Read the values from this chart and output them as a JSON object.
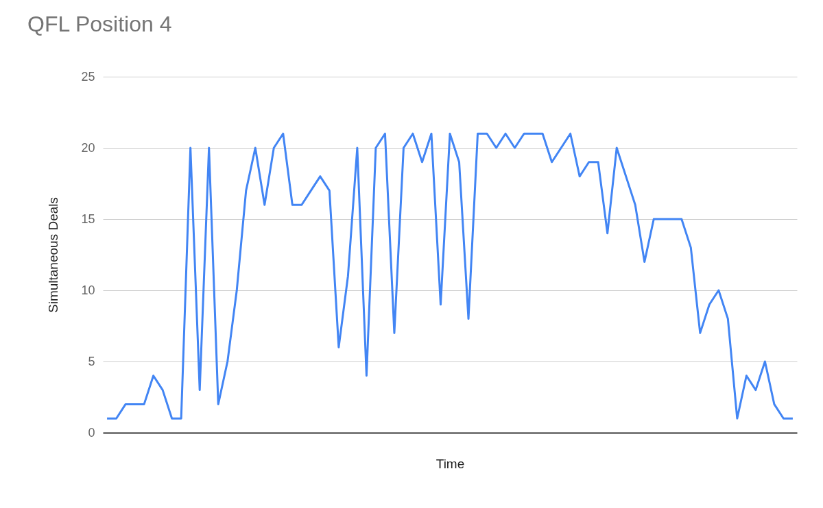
{
  "chart_data": {
    "type": "line",
    "title": "QFL Position 4",
    "xlabel": "Time",
    "ylabel": "Simultaneous Deals",
    "categories": [
      null,
      null,
      null,
      null,
      null,
      null,
      null,
      null,
      null,
      null,
      null,
      null,
      null,
      null,
      null,
      null,
      null,
      null,
      null,
      null,
      null,
      null,
      null,
      null,
      null,
      null,
      null,
      null,
      null,
      null,
      null,
      null,
      null,
      null,
      null,
      null,
      null,
      null,
      null,
      null,
      null,
      null,
      null,
      null,
      null,
      null,
      null,
      null,
      null,
      null,
      null,
      null,
      null,
      null,
      null,
      null,
      null,
      null,
      null,
      null,
      null,
      null,
      null,
      null,
      null,
      null,
      null,
      null,
      null,
      null,
      null,
      null,
      null,
      null,
      null
    ],
    "values": [
      1,
      1,
      2,
      2,
      2,
      4,
      3,
      1,
      1,
      20,
      3,
      20,
      2,
      5,
      10,
      17,
      20,
      16,
      20,
      21,
      16,
      16,
      17,
      18,
      17,
      6,
      11,
      20,
      4,
      20,
      21,
      7,
      20,
      21,
      19,
      21,
      9,
      21,
      19,
      8,
      21,
      21,
      20,
      21,
      20,
      21,
      21,
      21,
      19,
      20,
      21,
      18,
      19,
      19,
      14,
      20,
      18,
      16,
      12,
      15,
      15,
      15,
      15,
      13,
      7,
      9,
      10,
      8,
      1,
      4,
      3,
      5,
      2,
      1,
      1
    ],
    "color": "#4285f4",
    "ylim": [
      0,
      25
    ],
    "yticks": [
      0,
      5,
      10,
      15,
      20,
      25
    ],
    "grid": "y",
    "tick_labels": "y"
  }
}
